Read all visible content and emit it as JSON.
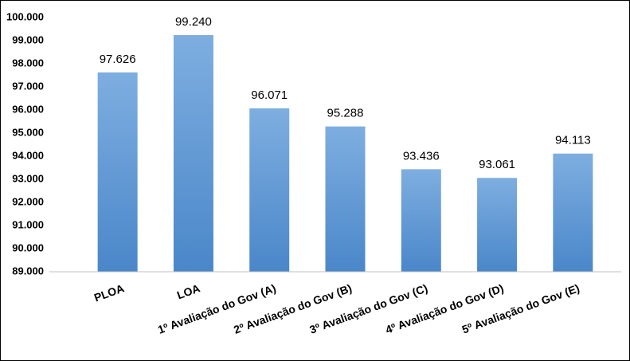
{
  "chart_data": {
    "type": "bar",
    "categories": [
      "PLOA",
      "LOA",
      "1º Avaliação do Gov (A)",
      "2º Avaliação do Gov (B)",
      "3º Avaliação do Gov (C)",
      "4º Avaliação do Gov (D)",
      "5º Avaliação do Gov (E)"
    ],
    "values": [
      97626,
      99240,
      96071,
      95288,
      93436,
      93061,
      94113
    ],
    "value_labels": [
      "97.626",
      "99.240",
      "96.071",
      "95.288",
      "93.436",
      "93.061",
      "94.113"
    ],
    "color": "#5b9bd5",
    "ylim": [
      89000,
      100000
    ],
    "yticks": [
      {
        "value": 89000,
        "label": "89.000"
      },
      {
        "value": 90000,
        "label": "90.000"
      },
      {
        "value": 91000,
        "label": "91.000"
      },
      {
        "value": 92000,
        "label": "92.000"
      },
      {
        "value": 93000,
        "label": "93.000"
      },
      {
        "value": 94000,
        "label": "94.000"
      },
      {
        "value": 95000,
        "label": "95.000"
      },
      {
        "value": 96000,
        "label": "96.000"
      },
      {
        "value": 97000,
        "label": "97.000"
      },
      {
        "value": 98000,
        "label": "98.000"
      },
      {
        "value": 99000,
        "label": "99.000"
      },
      {
        "value": 100000,
        "label": "100.000"
      }
    ],
    "grid": false
  }
}
